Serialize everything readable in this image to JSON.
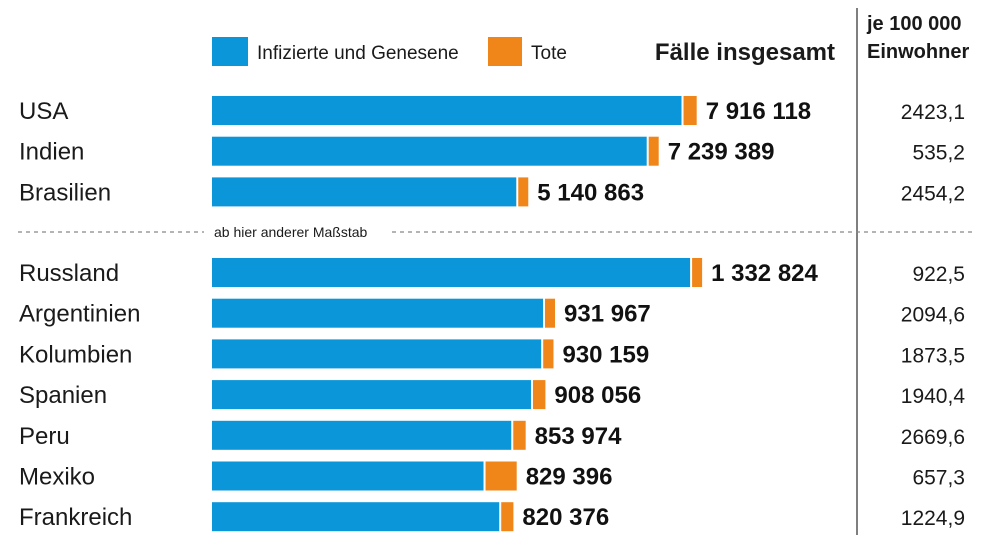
{
  "chart_data": {
    "type": "bar",
    "stacked": true,
    "orientation": "horizontal",
    "legend": [
      {
        "name": "Infizierte und Genesene",
        "color": "#0a96d8"
      },
      {
        "name": "Tote",
        "color": "#f08519"
      }
    ],
    "header_total": "Fälle insgesamt",
    "header_per_line1": "je 100 000",
    "header_per_line2": "Einwohner",
    "scale_note": "ab hier anderer Maßstab",
    "groups": [
      {
        "xmax": 8200000,
        "rows": [
          {
            "country": "USA",
            "infected_recovered": 7700000,
            "deaths": 216118,
            "total_label": "7 916 118",
            "per_100k": "2423,1"
          },
          {
            "country": "Indien",
            "infected_recovered": 7129000,
            "deaths": 110389,
            "total_label": "7 239 389",
            "per_100k": "535,2"
          },
          {
            "country": "Brasilien",
            "infected_recovered": 4990000,
            "deaths": 150863,
            "total_label": "5 140 863",
            "per_100k": "2454,2"
          }
        ]
      },
      {
        "xmax": 1370000,
        "rows": [
          {
            "country": "Russland",
            "infected_recovered": 1310000,
            "deaths": 22824,
            "total_label": "1 332 824",
            "per_100k": "922,5"
          },
          {
            "country": "Argentinien",
            "infected_recovered": 907000,
            "deaths": 24967,
            "total_label": "931 967",
            "per_100k": "2094,6"
          },
          {
            "country": "Kolumbien",
            "infected_recovered": 902000,
            "deaths": 28159,
            "total_label": "930 159",
            "per_100k": "1873,5"
          },
          {
            "country": "Spanien",
            "infected_recovered": 874000,
            "deaths": 34056,
            "total_label": "908 056",
            "per_100k": "1940,4"
          },
          {
            "country": "Peru",
            "infected_recovered": 820000,
            "deaths": 33974,
            "total_label": "853 974",
            "per_100k": "2669,6"
          },
          {
            "country": "Mexiko",
            "infected_recovered": 744000,
            "deaths": 85396,
            "total_label": "829 396",
            "per_100k": "657,3"
          },
          {
            "country": "Frankreich",
            "infected_recovered": 787000,
            "deaths": 33376,
            "total_label": "820 376",
            "per_100k": "1224,9"
          }
        ]
      }
    ]
  }
}
